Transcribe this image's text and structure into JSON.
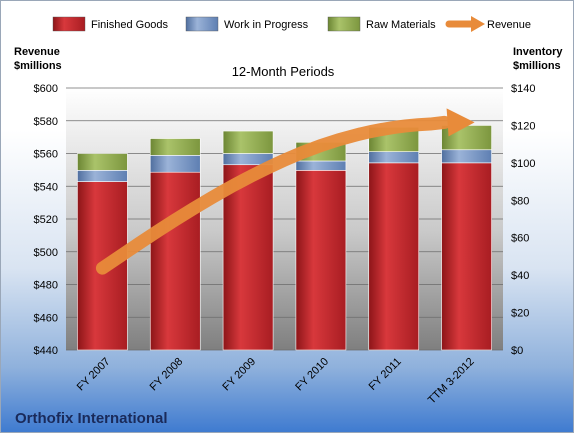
{
  "chart_data": {
    "type": "bar",
    "subtitle": "12-Month Periods",
    "brand": "Orthofix International",
    "left_axis_title": [
      "Revenue",
      "$millions"
    ],
    "right_axis_title": [
      "Inventory",
      "$millions"
    ],
    "categories": [
      "FY 2007",
      "FY 2008",
      "FY 2009",
      "FY 2010",
      "FY 2011",
      "TTM 3-2012"
    ],
    "left_axis": {
      "min": 440,
      "max": 600,
      "step": 20,
      "prefix": "$"
    },
    "right_axis": {
      "min": 0,
      "max": 140,
      "step": 20,
      "prefix": "$"
    },
    "stacked_series": [
      {
        "name": "Finished Goods",
        "color": "#c0282d",
        "values": [
          90,
          95,
          99,
          96,
          100,
          100
        ]
      },
      {
        "name": "Work in Progress",
        "color": "#6f8fc0",
        "values": [
          6,
          9,
          6,
          5,
          6,
          7
        ]
      },
      {
        "name": "Raw Materials",
        "color": "#8aa54a",
        "values": [
          9,
          9,
          12,
          10,
          13,
          13
        ]
      }
    ],
    "line_series": {
      "name": "Revenue",
      "color": "#e88b3a",
      "axis": "left",
      "values": [
        490,
        520,
        546,
        566,
        577,
        579
      ]
    },
    "legend_position": "top",
    "grid": true
  }
}
